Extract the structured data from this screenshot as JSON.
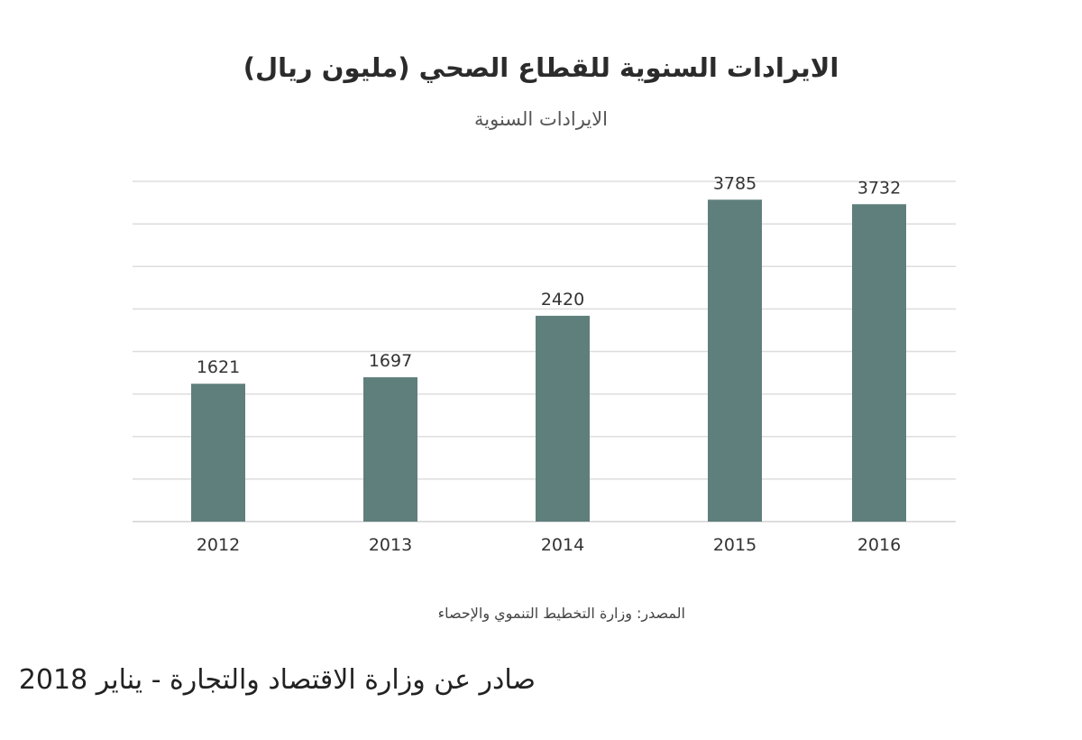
{
  "chart_data": {
    "type": "bar",
    "title": "الايرادات السنوية للقطاع الصحي (مليون ريال)",
    "subtitle": "الايرادات السنوية",
    "categories": [
      "2012",
      "2013",
      "2014",
      "2015",
      "2016"
    ],
    "series": [
      {
        "values": [
          1621,
          1697,
          2420,
          3785,
          3732
        ]
      }
    ],
    "ylim": [
      0,
      4000
    ],
    "y_gridline_step": 500,
    "grid": true,
    "data_labels": true,
    "bar_color": "#5f7f7c",
    "grid_color": "#dddddd"
  },
  "source": "المصدر: وزارة التخطيط التنموي والإحصاء",
  "footer": "صادر عن وزارة الاقتصاد والتجارة - يناير 2018"
}
